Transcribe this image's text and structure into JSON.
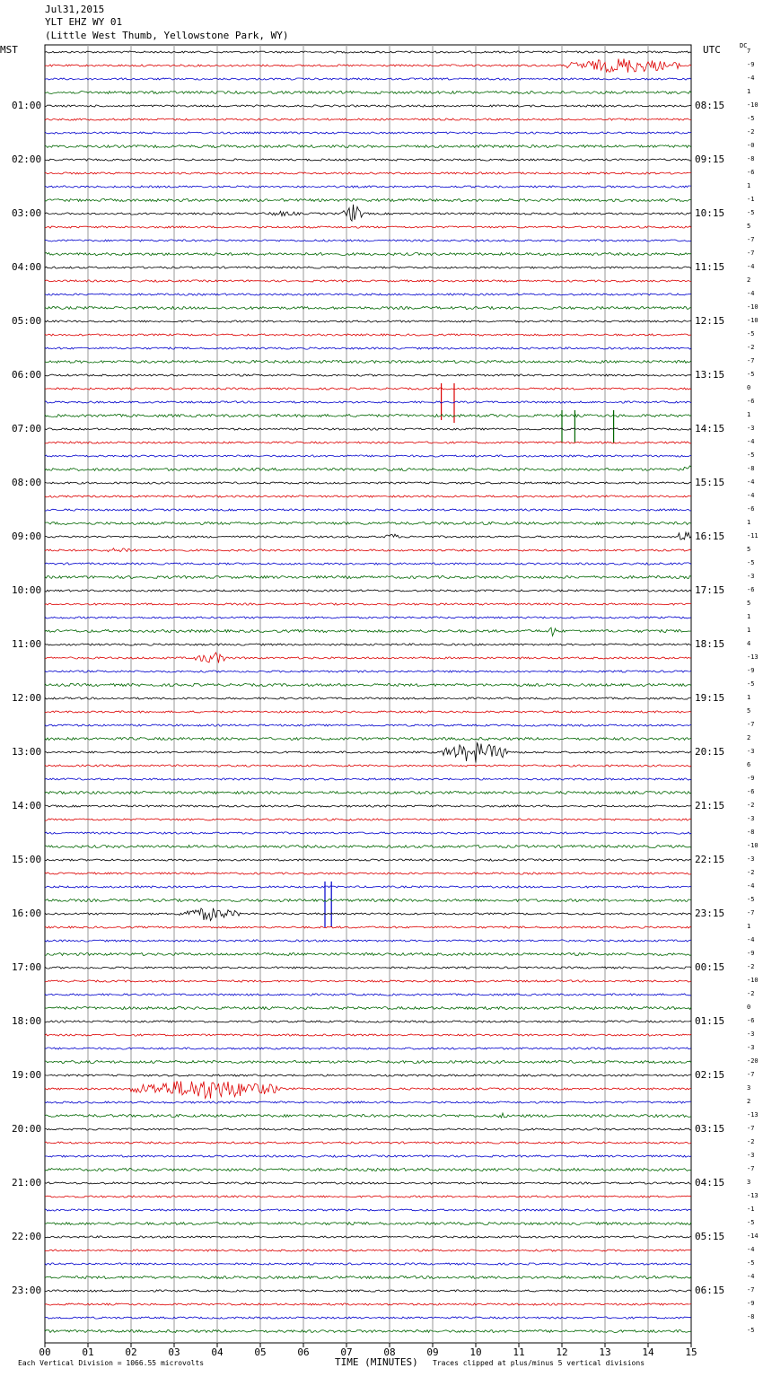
{
  "header": {
    "date": "Jul31,2015",
    "station": "YLT EHZ WY 01",
    "location": "(Little West Thumb, Yellowstone Park, WY)"
  },
  "labels": {
    "left_tz": "MST",
    "right_tz": "UTC",
    "dc": "DC"
  },
  "footer": {
    "scale": "Each Vertical Division = 1066.55 microvolts",
    "xlabel": "TIME (MINUTES)",
    "clip_note": "Traces clipped at plus/minus 5 vertical divisions"
  },
  "colors": {
    "trace_cycle": [
      "#000000",
      "#dd0000",
      "#0000cc",
      "#006600"
    ],
    "grid": "#9a9a9a"
  },
  "chart_data": {
    "type": "line",
    "title": "Jul31,2015 YLT EHZ WY 01",
    "xlabel": "TIME (MINUTES)",
    "xlim": [
      0,
      15
    ],
    "x_ticks": [
      "00",
      "01",
      "02",
      "03",
      "04",
      "05",
      "06",
      "07",
      "08",
      "09",
      "10",
      "11",
      "12",
      "13",
      "14",
      "15"
    ],
    "traces_per_hour": 4,
    "hours_mst": [
      "01:00",
      "02:00",
      "03:00",
      "04:00",
      "05:00",
      "06:00",
      "07:00",
      "08:00",
      "09:00",
      "10:00",
      "11:00",
      "12:00",
      "13:00",
      "14:00",
      "15:00",
      "16:00",
      "17:00",
      "18:00",
      "19:00",
      "20:00",
      "21:00",
      "22:00",
      "23:00"
    ],
    "hours_utc": [
      "08:15",
      "09:15",
      "10:15",
      "11:15",
      "12:15",
      "13:15",
      "14:15",
      "15:15",
      "16:15",
      "17:15",
      "18:15",
      "19:15",
      "20:15",
      "21:15",
      "22:15",
      "23:15",
      "00:15",
      "01:15",
      "02:15",
      "03:15",
      "04:15",
      "05:15",
      "06:15"
    ],
    "dc_offsets": [
      "7",
      "-9",
      "-4",
      "1",
      "-10",
      "-5",
      "-2",
      "-0",
      "-8",
      "-6",
      "1",
      "-1",
      "-5",
      "5",
      "-7",
      "-7",
      "-4",
      "2",
      "-4",
      "-10",
      "-10",
      "-5",
      "-2",
      "-7",
      "-5",
      "0",
      "-6",
      "1",
      "-3",
      "-4",
      "-5",
      "-8",
      "-4",
      "-4",
      "-6",
      "1",
      "-11",
      "5",
      "-5",
      "-3",
      "-6",
      "5",
      "1",
      "1",
      "4",
      "-13",
      "-9",
      "-5",
      "1",
      "5",
      "-7",
      "2",
      "-3",
      "6",
      "-9",
      "-6",
      "-2",
      "-3",
      "-8",
      "-10",
      "-3",
      "-2",
      "-4",
      "-5",
      "-7",
      "1",
      "-4",
      "-9",
      "-2",
      "-10",
      "-2",
      "0",
      "-6",
      "-3",
      "-3",
      "-20",
      "-7",
      "3",
      "2",
      "-13",
      "-7",
      "-2",
      "-3",
      "-7",
      "3",
      "-13",
      "-1",
      "-5",
      "-14",
      "-4",
      "-5",
      "-4",
      "-7",
      "-9",
      "-8",
      "-5"
    ],
    "events": [
      {
        "trace": 1,
        "x_min": 12.1,
        "x_max": 14.8,
        "amp": 9
      },
      {
        "trace": 12,
        "x_min": 6.9,
        "x_max": 7.4,
        "amp": 11
      },
      {
        "trace": 12,
        "x_min": 5.0,
        "x_max": 6.0,
        "amp": 3
      },
      {
        "trace": 25,
        "x_min": 9.2,
        "x_max": 9.25,
        "amp": 35,
        "type": "spike"
      },
      {
        "trace": 25,
        "x_min": 9.5,
        "x_max": 9.55,
        "amp": 38,
        "type": "spike"
      },
      {
        "trace": 27,
        "x_min": 12.0,
        "x_max": 12.05,
        "amp": 30,
        "type": "spike"
      },
      {
        "trace": 27,
        "x_min": 12.3,
        "x_max": 12.35,
        "amp": 30,
        "type": "spike"
      },
      {
        "trace": 27,
        "x_min": 13.2,
        "x_max": 13.25,
        "amp": 30,
        "type": "spike"
      },
      {
        "trace": 31,
        "x_min": 14.8,
        "x_max": 15.0,
        "amp": 8
      },
      {
        "trace": 36,
        "x_min": 7.9,
        "x_max": 8.2,
        "amp": 5
      },
      {
        "trace": 36,
        "x_min": 14.7,
        "x_max": 15.0,
        "amp": 10
      },
      {
        "trace": 37,
        "x_min": 1.2,
        "x_max": 2.4,
        "amp": 3
      },
      {
        "trace": 43,
        "x_min": 11.7,
        "x_max": 11.9,
        "amp": 7
      },
      {
        "trace": 45,
        "x_min": 3.5,
        "x_max": 4.3,
        "amp": 7
      },
      {
        "trace": 52,
        "x_min": 9.2,
        "x_max": 10.8,
        "amp": 12
      },
      {
        "trace": 62,
        "x_min": 6.5,
        "x_max": 6.55,
        "amp": 45,
        "type": "spike"
      },
      {
        "trace": 62,
        "x_min": 6.65,
        "x_max": 6.7,
        "amp": 45,
        "type": "spike"
      },
      {
        "trace": 64,
        "x_min": 3.1,
        "x_max": 4.5,
        "amp": 8
      },
      {
        "trace": 77,
        "x_min": 2.0,
        "x_max": 5.5,
        "amp": 12
      },
      {
        "trace": 79,
        "x_min": 10.5,
        "x_max": 10.7,
        "amp": 4
      }
    ]
  }
}
